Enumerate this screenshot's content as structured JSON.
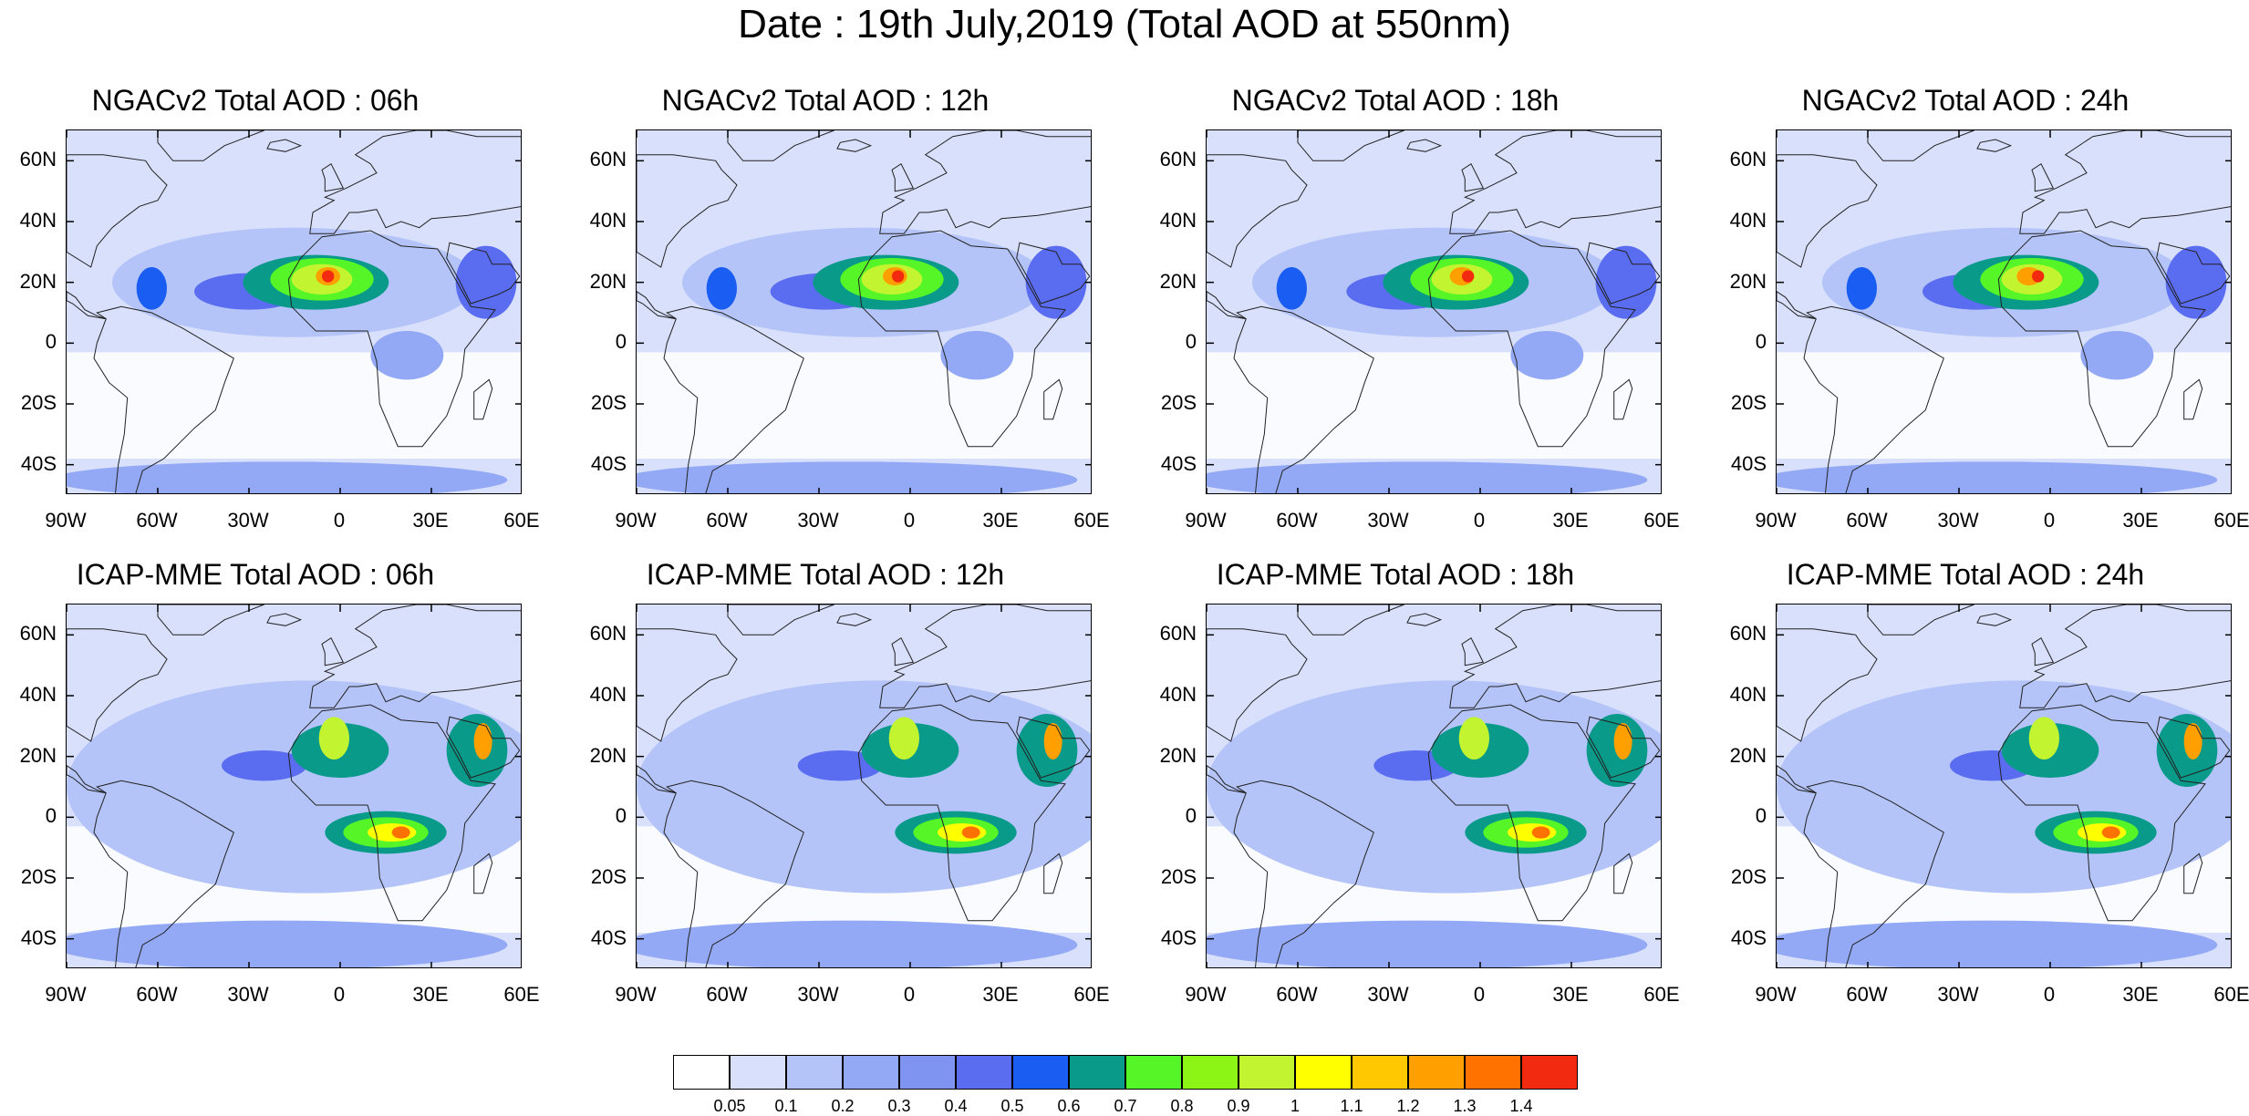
{
  "title": "Date : 19th July,2019 (Total AOD at 550nm)",
  "panels": [
    {
      "title": "NGACv2 Total AOD : 06h",
      "model": "NGACv2",
      "hour": "06h"
    },
    {
      "title": "NGACv2 Total AOD : 12h",
      "model": "NGACv2",
      "hour": "12h"
    },
    {
      "title": "NGACv2 Total AOD : 18h",
      "model": "NGACv2",
      "hour": "18h"
    },
    {
      "title": "NGACv2 Total AOD : 24h",
      "model": "NGACv2",
      "hour": "24h"
    },
    {
      "title": "ICAP-MME Total AOD : 06h",
      "model": "ICAP-MME",
      "hour": "06h"
    },
    {
      "title": "ICAP-MME Total AOD : 12h",
      "model": "ICAP-MME",
      "hour": "12h"
    },
    {
      "title": "ICAP-MME Total AOD : 18h",
      "model": "ICAP-MME",
      "hour": "18h"
    },
    {
      "title": "ICAP-MME Total AOD : 24h",
      "model": "ICAP-MME",
      "hour": "24h"
    }
  ],
  "axes": {
    "lat_ticks": [
      "60N",
      "40N",
      "20N",
      "0",
      "20S",
      "40S"
    ],
    "lon_ticks": [
      "90W",
      "60W",
      "30W",
      "0",
      "30E",
      "60E"
    ],
    "lat_range": [
      -50,
      70
    ],
    "lon_range": [
      -90,
      60
    ]
  },
  "colorbar": {
    "labels": [
      "0.05",
      "0.1",
      "0.2",
      "0.3",
      "0.4",
      "0.5",
      "0.6",
      "0.7",
      "0.8",
      "0.9",
      "1",
      "1.1",
      "1.2",
      "1.3",
      "1.4"
    ],
    "colors": [
      "#ffffff",
      "#d8e0fb",
      "#b4c4f8",
      "#93a9f5",
      "#7f94f1",
      "#5a6cf0",
      "#1a5df2",
      "#0a9a8a",
      "#55f528",
      "#8cf516",
      "#c2f530",
      "#ffff00",
      "#ffc800",
      "#ff9f00",
      "#ff7200",
      "#f22a0f"
    ]
  }
}
